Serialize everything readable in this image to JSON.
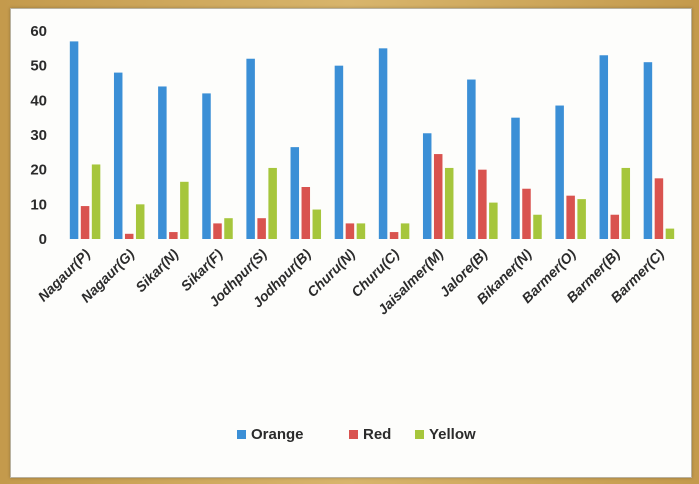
{
  "chart_data": {
    "type": "bar",
    "title": "",
    "xlabel": "",
    "ylabel": "",
    "ylim": [
      0,
      60
    ],
    "yticks": [
      0,
      10,
      20,
      30,
      40,
      50,
      60
    ],
    "grid": false,
    "legend_position": "bottom",
    "categories": [
      "Nagaur(P)",
      "Nagaur(G)",
      "Sikar(N)",
      "Sikar(F)",
      "Jodhpur(S)",
      "Jodhpur(B)",
      "Churu(N)",
      "Churu(C)",
      "Jaisalmer(M)",
      "Jalore(B)",
      "Bikaner(N)",
      "Barmer(O)",
      "Barmer(B)",
      "Barmer(C)"
    ],
    "series": [
      {
        "name": "Orange",
        "color": "#3b8fd6",
        "values": [
          57,
          48,
          44,
          42,
          52,
          26.5,
          50,
          55,
          30.5,
          46,
          35,
          38.5,
          53,
          51
        ]
      },
      {
        "name": "Red",
        "color": "#d9534f",
        "values": [
          9.5,
          1.5,
          2,
          4.5,
          6,
          15,
          4.5,
          2,
          24.5,
          20,
          14.5,
          12.5,
          7,
          17.5
        ]
      },
      {
        "name": "Yellow",
        "color": "#a6c63c",
        "values": [
          21.5,
          10,
          16.5,
          6,
          20.5,
          8.5,
          4.5,
          4.5,
          20.5,
          10.5,
          7,
          11.5,
          20.5,
          3
        ]
      }
    ]
  }
}
